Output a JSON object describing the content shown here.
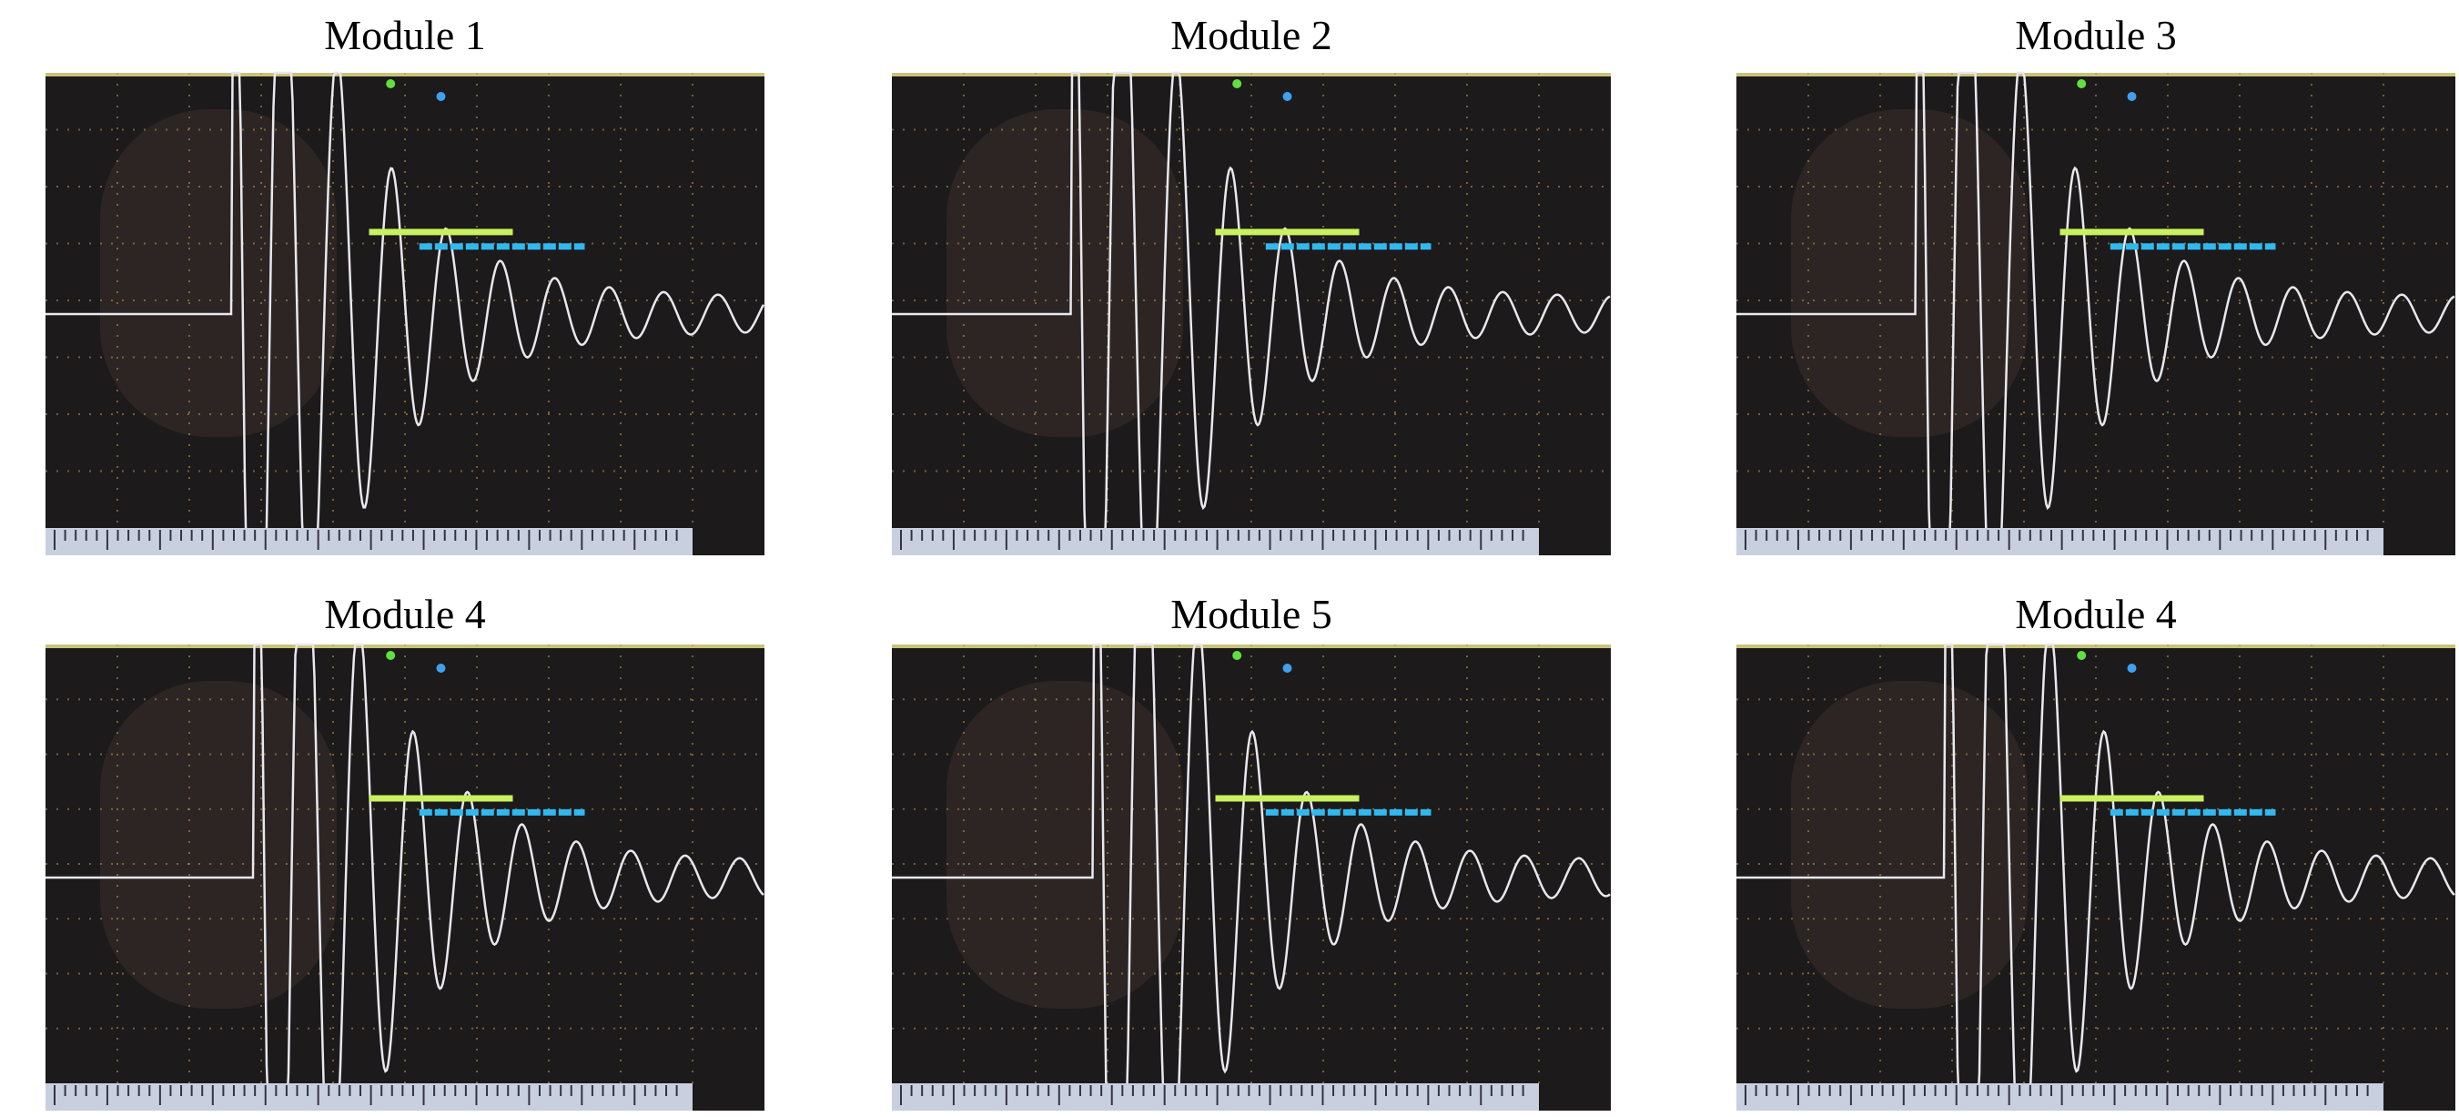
{
  "panels": [
    {
      "title": "Module 1"
    },
    {
      "title": "Module 2"
    },
    {
      "title": "Module 3"
    },
    {
      "title": "Module 4"
    },
    {
      "title": "Module 5"
    },
    {
      "title": "Module 4"
    }
  ]
}
